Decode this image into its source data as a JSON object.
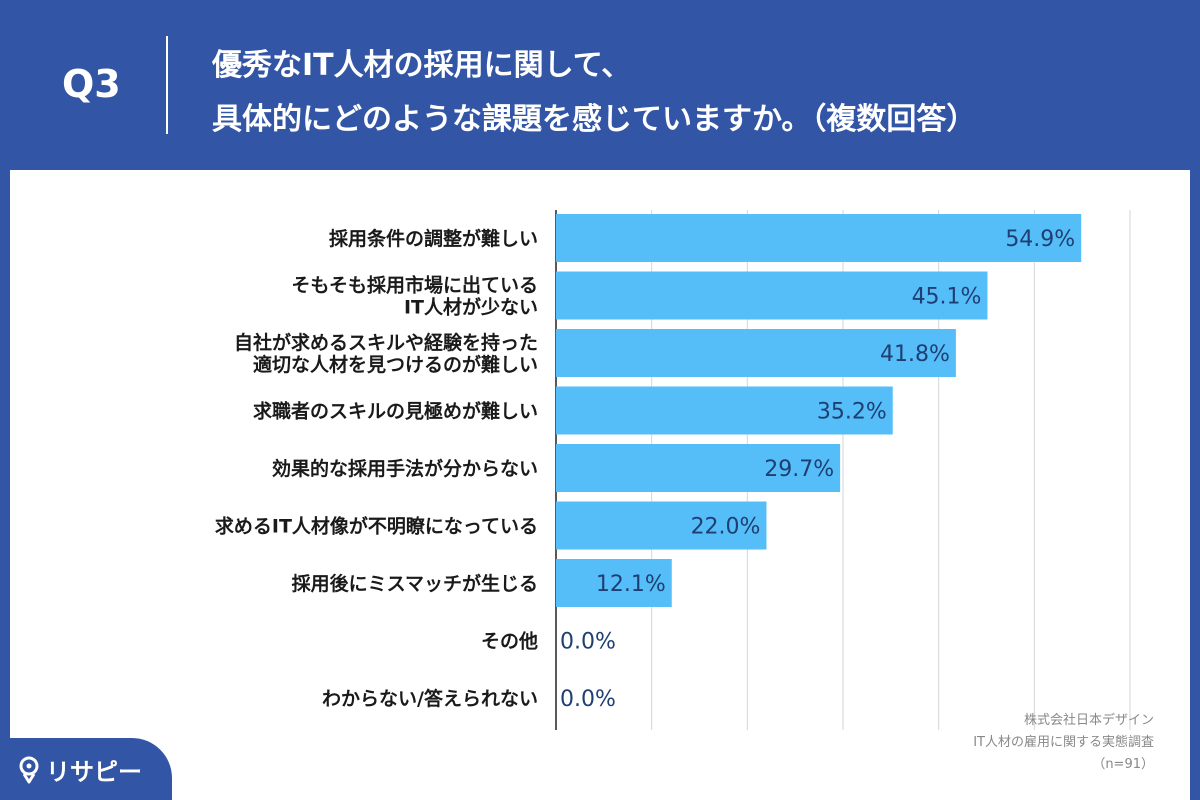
{
  "header": {
    "question_number": "Q3",
    "title_line1": "優秀なIT人材の採用に関して、",
    "title_line2": "具体的にどのような課題を感じていますか。（複数回答）"
  },
  "chart_data": {
    "type": "bar",
    "orientation": "horizontal",
    "categories": [
      [
        "採用条件の調整が難しい"
      ],
      [
        "そもそも採用市場に出ている",
        "IT人材が少ない"
      ],
      [
        "自社が求めるスキルや経験を持った",
        "適切な人材を見つけるのが難しい"
      ],
      [
        "求職者のスキルの見極めが難しい"
      ],
      [
        "効果的な採用手法が分からない"
      ],
      [
        "求めるIT人材像が不明瞭になっている"
      ],
      [
        "採用後にミスマッチが生じる"
      ],
      [
        "その他"
      ],
      [
        "わからない/答えられない"
      ]
    ],
    "values": [
      54.9,
      45.1,
      41.8,
      35.2,
      29.7,
      22.0,
      12.1,
      0.0,
      0.0
    ],
    "value_labels": [
      "54.9%",
      "45.1%",
      "41.8%",
      "35.2%",
      "29.7%",
      "22.0%",
      "12.1%",
      "0.0%",
      "0.0%"
    ],
    "xlim": [
      0,
      60
    ],
    "grid": true,
    "bar_color": "#55bdf8"
  },
  "source": {
    "line1": "株式会社日本デザイン",
    "line2": "IT人材の雇用に関する実態調査",
    "line3": "（n=91）"
  },
  "logo": {
    "icon": "pin-icon",
    "text": "リサピー"
  },
  "colors": {
    "background": "#3355a5",
    "bar": "#55bdf8",
    "value_text": "#1f3f73"
  }
}
